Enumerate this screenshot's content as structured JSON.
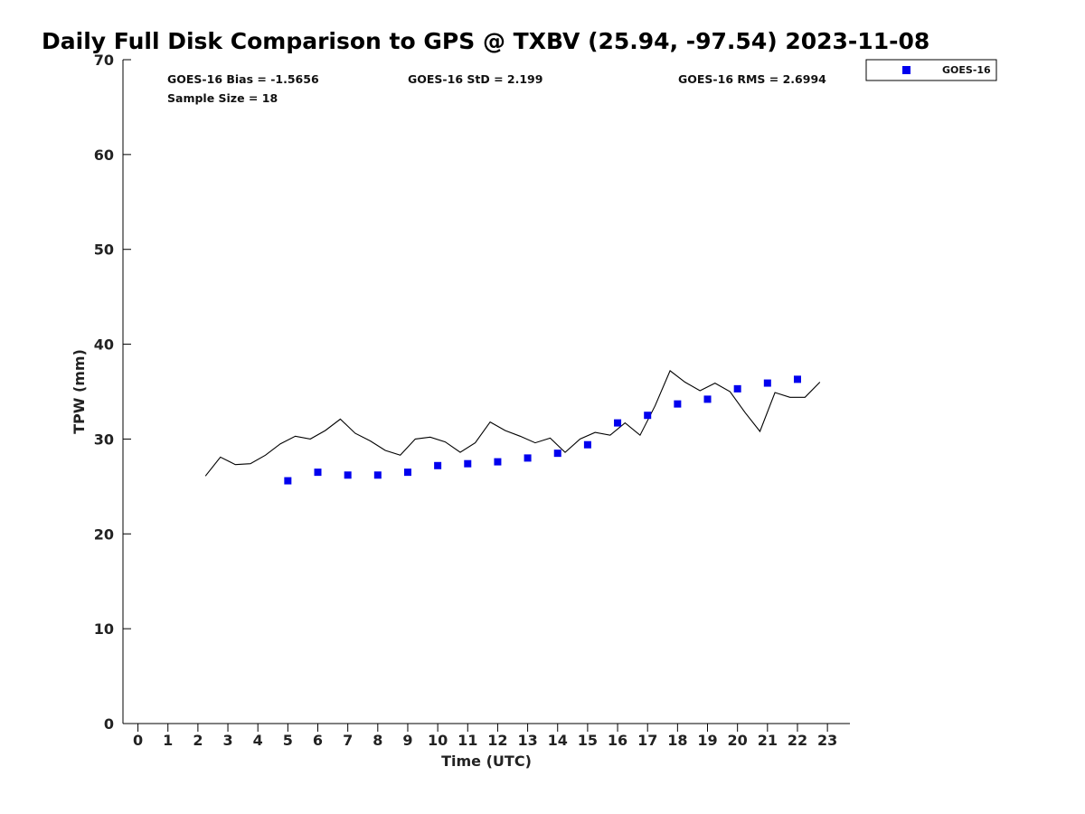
{
  "chart_data": {
    "type": "scatter",
    "title": "Daily Full Disk Comparison to GPS @ TXBV (25.94, -97.54) 2023-11-08",
    "xlabel": "Time (UTC)",
    "ylabel": "TPW (mm)",
    "xlim": [
      -0.5,
      23.75
    ],
    "ylim": [
      0,
      70
    ],
    "x_ticks": [
      "0",
      "1",
      "2",
      "3",
      "4",
      "5",
      "6",
      "7",
      "8",
      "9",
      "10",
      "11",
      "12",
      "13",
      "14",
      "15",
      "16",
      "17",
      "18",
      "19",
      "20",
      "21",
      "22",
      "23"
    ],
    "y_ticks": [
      "0",
      "10",
      "20",
      "30",
      "40",
      "50",
      "60",
      "70"
    ],
    "grid": false,
    "legend_position": "top-right (outside plot)",
    "stats": {
      "bias": "GOES-16 Bias = -1.5656",
      "std": "GOES-16 StD = 2.199",
      "rms": "GOES-16 RMS = 2.6994",
      "sample": "Sample Size = 18"
    },
    "series": [
      {
        "name": "GOES-16",
        "kind": "scatter",
        "color": "#0000ee",
        "marker": "square",
        "x": [
          5,
          6,
          7,
          8,
          9,
          10,
          11,
          12,
          13,
          14,
          15,
          16,
          17,
          18,
          19,
          20,
          21,
          22
        ],
        "y": [
          25.6,
          26.5,
          26.2,
          26.2,
          26.5,
          27.2,
          27.4,
          27.6,
          28.0,
          28.5,
          29.4,
          31.7,
          32.5,
          33.7,
          34.2,
          35.3,
          35.9,
          36.3
        ]
      },
      {
        "kind": "line",
        "color": "#000000",
        "x": [
          2.25,
          2.75,
          3.25,
          3.75,
          4.25,
          4.75,
          5.25,
          5.75,
          6.25,
          6.75,
          7.25,
          7.75,
          8.25,
          8.75,
          9.25,
          9.75,
          10.25,
          10.75,
          11.25,
          11.75,
          12.25,
          12.75,
          13.25,
          13.75,
          14.25,
          14.75,
          15.25,
          15.75,
          16.25,
          16.75,
          17.25,
          17.75,
          18.25,
          18.75,
          19.25,
          19.75,
          20.25,
          20.75,
          21.25,
          21.75,
          22.25,
          22.75
        ],
        "y": [
          26.1,
          28.1,
          27.3,
          27.4,
          28.3,
          29.5,
          30.3,
          30.0,
          30.9,
          32.1,
          30.6,
          29.8,
          28.8,
          28.3,
          30.0,
          30.2,
          29.7,
          28.6,
          29.6,
          31.8,
          30.9,
          30.3,
          29.6,
          30.1,
          28.6,
          30.0,
          30.7,
          30.4,
          31.7,
          30.4,
          33.5,
          37.2,
          36.0,
          35.1,
          35.9,
          35.0,
          32.8,
          30.8,
          34.9,
          34.4,
          34.4,
          36.0
        ]
      }
    ]
  }
}
